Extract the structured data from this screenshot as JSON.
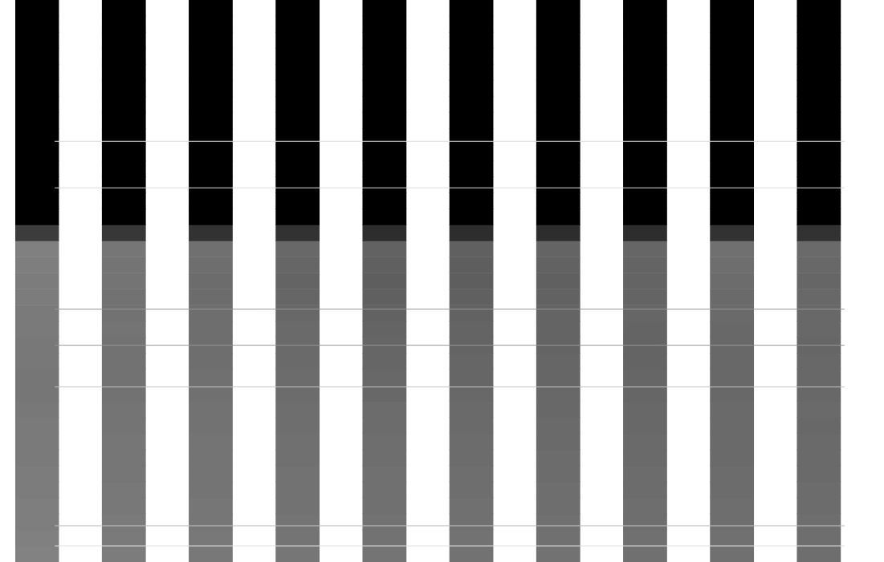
{
  "chart_data": {
    "type": "heatmap",
    "tick_labels": false,
    "grid": false,
    "xlim": [
      0,
      10
    ],
    "ylim": [
      0,
      35
    ],
    "clim": [
      0,
      255
    ],
    "cells": [
      [
        0,
        0,
        0,
        0,
        0,
        0,
        0,
        0,
        0,
        0
      ],
      [
        0,
        0,
        0,
        0,
        0,
        0,
        0,
        0,
        0,
        0
      ],
      [
        0,
        0,
        0,
        0,
        0,
        0,
        0,
        0,
        0,
        0
      ],
      [
        0,
        0,
        0,
        0,
        0,
        0,
        0,
        0,
        0,
        0
      ],
      [
        0,
        0,
        0,
        0,
        0,
        0,
        0,
        0,
        0,
        0
      ],
      [
        0,
        0,
        0,
        0,
        0,
        0,
        0,
        0,
        0,
        0
      ],
      [
        0,
        0,
        0,
        0,
        0,
        0,
        0,
        0,
        0,
        0
      ],
      [
        0,
        0,
        0,
        0,
        0,
        0,
        0,
        0,
        0,
        0
      ],
      [
        0,
        0,
        0,
        0,
        0,
        0,
        0,
        0,
        0,
        0
      ],
      [
        0,
        0,
        0,
        0,
        0,
        0,
        0,
        0,
        0,
        0
      ],
      [
        0,
        0,
        0,
        0,
        0,
        0,
        0,
        0,
        0,
        0
      ],
      [
        0,
        0,
        0,
        0,
        0,
        0,
        0,
        0,
        0,
        0
      ],
      [
        0,
        0,
        0,
        0,
        0,
        0,
        0,
        0,
        0,
        0
      ],
      [
        0,
        0,
        0,
        0,
        0,
        0,
        0,
        0,
        0,
        0
      ],
      [
        60,
        55,
        50,
        50,
        45,
        45,
        45,
        45,
        50,
        50
      ],
      [
        128,
        118,
        112,
        104,
        98,
        96,
        100,
        102,
        112,
        106
      ],
      [
        126,
        116,
        110,
        102,
        96,
        94,
        98,
        100,
        110,
        104
      ],
      [
        124,
        116,
        108,
        100,
        94,
        94,
        96,
        100,
        108,
        102
      ],
      [
        124,
        114,
        108,
        102,
        96,
        96,
        98,
        100,
        106,
        104
      ],
      [
        122,
        114,
        110,
        104,
        98,
        98,
        100,
        102,
        106,
        104
      ],
      [
        122,
        116,
        110,
        106,
        100,
        100,
        100,
        100,
        104,
        104
      ],
      [
        120,
        114,
        110,
        106,
        102,
        100,
        100,
        100,
        104,
        102
      ],
      [
        120,
        114,
        110,
        106,
        102,
        102,
        102,
        100,
        104,
        104
      ],
      [
        118,
        114,
        112,
        108,
        104,
        102,
        102,
        102,
        104,
        104
      ],
      [
        118,
        114,
        112,
        108,
        104,
        104,
        104,
        102,
        104,
        104
      ],
      [
        120,
        116,
        114,
        110,
        108,
        106,
        104,
        104,
        106,
        106
      ],
      [
        122,
        116,
        114,
        110,
        108,
        106,
        106,
        104,
        106,
        104
      ],
      [
        122,
        118,
        116,
        112,
        110,
        108,
        106,
        106,
        106,
        106
      ],
      [
        122,
        118,
        116,
        112,
        110,
        108,
        108,
        106,
        106,
        106
      ],
      [
        124,
        118,
        116,
        114,
        112,
        110,
        108,
        108,
        108,
        106
      ],
      [
        124,
        120,
        116,
        114,
        112,
        110,
        110,
        108,
        108,
        108
      ],
      [
        126,
        120,
        118,
        114,
        112,
        112,
        110,
        110,
        110,
        108
      ],
      [
        126,
        122,
        118,
        116,
        114,
        112,
        112,
        110,
        110,
        110
      ],
      [
        128,
        122,
        120,
        116,
        114,
        114,
        112,
        112,
        112,
        110
      ],
      [
        130,
        124,
        120,
        118,
        116,
        114,
        114,
        112,
        112,
        110
      ]
    ],
    "lines": [
      {
        "y": 8.8,
        "intensity": 220
      },
      {
        "y": 11.7,
        "intensity": 220
      },
      {
        "y": 19.25,
        "intensity": 150
      },
      {
        "y": 21.5,
        "intensity": 150
      },
      {
        "y": 24.1,
        "intensity": 195
      },
      {
        "y": 32.75,
        "intensity": 190
      },
      {
        "y": 34.0,
        "intensity": 225
      }
    ]
  }
}
